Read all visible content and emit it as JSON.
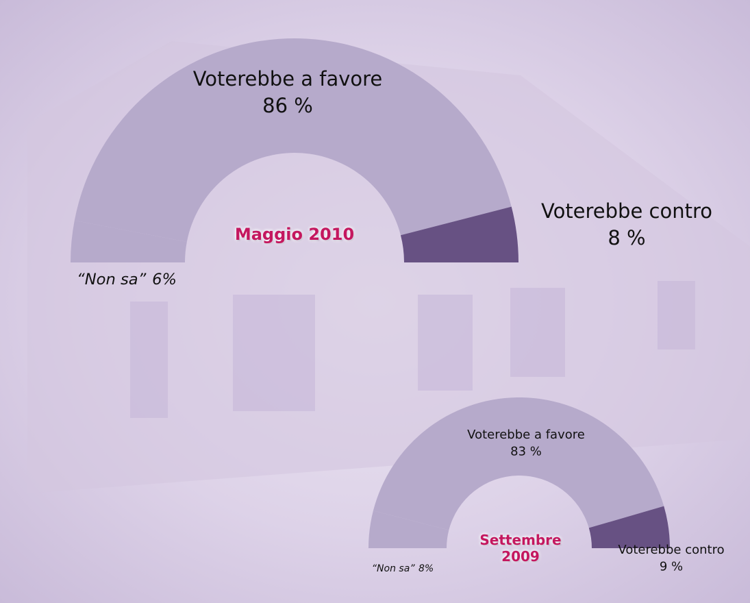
{
  "chart_data": [
    {
      "type": "half-donut",
      "title": "Maggio 2010",
      "categories": [
        "“Non sa”",
        "Voterebbe a favore",
        "Voterebbe contro"
      ],
      "values": [
        6,
        86,
        8
      ],
      "value_labels": [
        "6%",
        "86 %",
        "8 %"
      ],
      "colors": [
        "#b6aacb",
        "#b6aacb",
        "#675183"
      ]
    },
    {
      "type": "half-donut",
      "title": "Settembre 2009",
      "categories": [
        "“Non sa”",
        "Voterebbe a favore",
        "Voterebbe contro"
      ],
      "values": [
        8,
        83,
        9
      ],
      "value_labels": [
        "8%",
        "83 %",
        "9 %"
      ],
      "colors": [
        "#b6aacb",
        "#b6aacb",
        "#675183"
      ]
    }
  ]
}
